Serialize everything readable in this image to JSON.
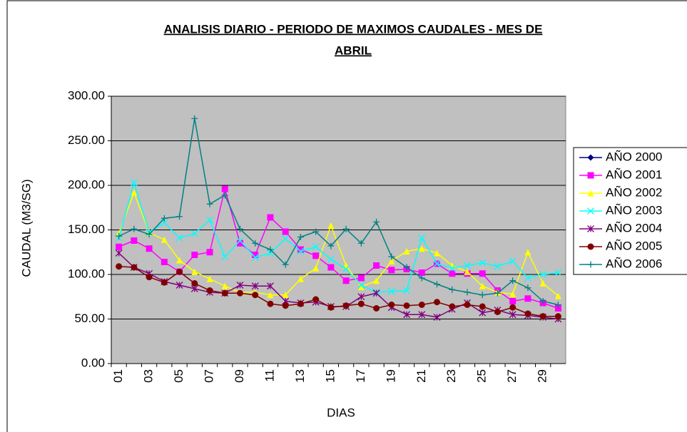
{
  "chart_data": {
    "type": "line",
    "title": [
      "ANALISIS DIARIO - PERIODO DE MAXIMOS CAUDALES - MES DE",
      "ABRIL"
    ],
    "xlabel": "DIAS",
    "ylabel": "CAUDAL (M3/SG)",
    "categories": [
      "01",
      null,
      "03",
      null,
      "05",
      null,
      "07",
      null,
      "09",
      null,
      "11",
      null,
      "13",
      null,
      "15",
      null,
      "17",
      null,
      "19",
      null,
      "21",
      null,
      "23",
      null,
      "25",
      null,
      "27",
      null,
      "29",
      null
    ],
    "ylim": [
      0,
      300
    ],
    "yticks": [
      {
        "value": 0,
        "label": "0.00"
      },
      {
        "value": 50,
        "label": "50.00"
      },
      {
        "value": 100,
        "label": "100.00"
      },
      {
        "value": 150,
        "label": "150.00"
      },
      {
        "value": 200,
        "label": "200.00"
      },
      {
        "value": 250,
        "label": "250.00"
      },
      {
        "value": 300,
        "label": "300.00"
      }
    ],
    "grid": true,
    "plot_background": "#c0c0c0",
    "legend": "right",
    "series": [
      {
        "name": "AÑO 2000",
        "color": "#000080",
        "marker": "diamond",
        "values": [
          null,
          null,
          null,
          null,
          null,
          null,
          null,
          null,
          null,
          null,
          null,
          null,
          null,
          null,
          null,
          null,
          null,
          null,
          null,
          null,
          null,
          null,
          null,
          null,
          null,
          null,
          null,
          null,
          null,
          null
        ]
      },
      {
        "name": "AÑO 2001",
        "color": "#ff00ff",
        "marker": "square",
        "values": [
          131,
          138,
          129,
          114,
          103,
          122,
          125,
          196,
          135,
          122,
          164,
          148,
          128,
          121,
          108,
          93,
          96,
          110,
          105,
          106,
          102,
          112,
          101,
          101,
          101,
          82,
          70,
          73,
          68,
          62
        ]
      },
      {
        "name": "AÑO 2002",
        "color": "#ffff00",
        "marker": "triangle",
        "values": [
          146,
          192,
          147,
          139,
          116,
          103,
          95,
          87,
          80,
          80,
          77,
          77,
          95,
          107,
          155,
          110,
          86,
          93,
          115,
          126,
          129,
          124,
          110,
          103,
          87,
          80,
          78,
          125,
          90,
          76
        ]
      },
      {
        "name": "AÑO 2003",
        "color": "#00ffff",
        "marker": "x",
        "values": [
          141,
          203,
          147,
          158,
          141,
          146,
          161,
          120,
          138,
          119,
          124,
          140,
          126,
          131,
          117,
          106,
          88,
          80,
          81,
          82,
          141,
          112,
          107,
          110,
          113,
          109,
          115,
          96,
          100,
          102
        ]
      },
      {
        "name": "AÑO 2004",
        "color": "#800080",
        "marker": "asterisk",
        "values": [
          124,
          108,
          101,
          92,
          88,
          84,
          80,
          79,
          88,
          87,
          87,
          70,
          68,
          69,
          64,
          64,
          75,
          79,
          63,
          55,
          55,
          52,
          61,
          68,
          57,
          60,
          55,
          54,
          52,
          50
        ]
      },
      {
        "name": "AÑO 2005",
        "color": "#800000",
        "marker": "circle",
        "values": [
          109,
          108,
          97,
          91,
          103,
          90,
          82,
          79,
          79,
          77,
          67,
          65,
          67,
          72,
          63,
          65,
          67,
          62,
          66,
          65,
          66,
          69,
          64,
          66,
          64,
          58,
          63,
          56,
          53,
          53
        ]
      },
      {
        "name": "AÑO 2006",
        "color": "#008080",
        "marker": "plus",
        "values": [
          143,
          151,
          145,
          163,
          165,
          275,
          179,
          189,
          151,
          135,
          128,
          111,
          142,
          148,
          132,
          151,
          135,
          159,
          120,
          108,
          96,
          89,
          83,
          80,
          77,
          79,
          93,
          85,
          70,
          66
        ]
      }
    ]
  }
}
